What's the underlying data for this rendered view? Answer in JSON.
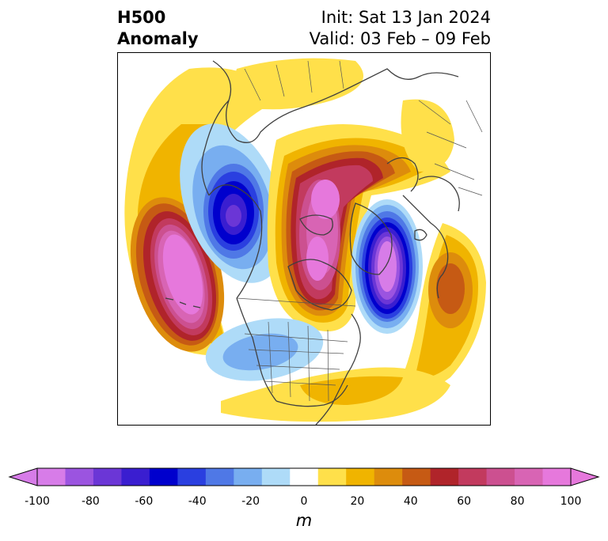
{
  "title": {
    "left_line1": "H500",
    "left_line2": "Anomaly",
    "right_line1": "Init: Sat 13 Jan 2024",
    "right_line2": "Valid: 03 Feb – 09 Feb"
  },
  "colorbar": {
    "unit": "m",
    "tick_labels": [
      "-100",
      "-80",
      "-60",
      "-40",
      "-20",
      "0",
      "20",
      "40",
      "60",
      "80",
      "100"
    ],
    "levels": [
      -100,
      -90,
      -80,
      -70,
      -60,
      -50,
      -40,
      -30,
      -20,
      -10,
      10,
      20,
      30,
      40,
      50,
      60,
      70,
      80,
      90,
      100
    ],
    "colors": [
      "#d77ce8",
      "#9b54e0",
      "#6b36d6",
      "#3a1ed0",
      "#0000cd",
      "#2a3fe0",
      "#4f78e6",
      "#78aef0",
      "#aedbf8",
      "#ffffff",
      "#ffe04a",
      "#f0b400",
      "#dd8c0c",
      "#c65a14",
      "#b0242a",
      "#c23a5e",
      "#cc5090",
      "#d864b4",
      "#e678dc"
    ],
    "min_extend_color": "#d77ce8",
    "max_extend_color": "#e678dc"
  },
  "map_colors": {
    "coast": "#404040",
    "border": "#555555"
  }
}
